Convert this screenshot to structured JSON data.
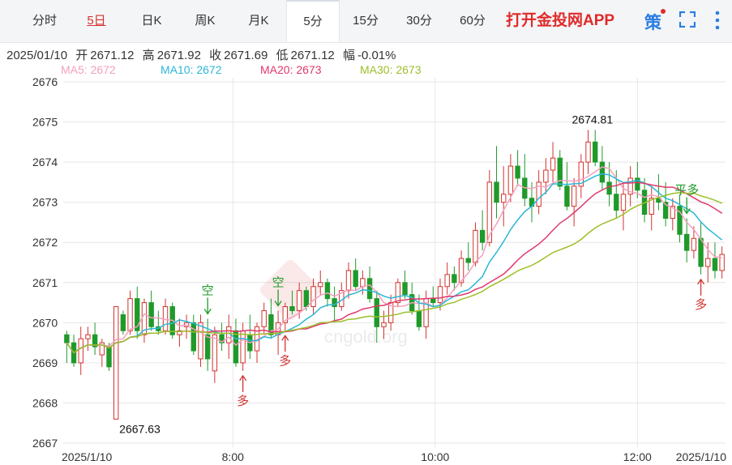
{
  "tabs": [
    "分时",
    "5日",
    "日K",
    "周K",
    "月K",
    "5分",
    "15分",
    "30分",
    "60分"
  ],
  "app_link": "打开金投网APP",
  "ce_label": "策",
  "info": {
    "date": "2025/01/10",
    "open_label": "开",
    "open": "2671.12",
    "high_label": "高",
    "high": "2671.92",
    "close_label": "收",
    "close": "2671.69",
    "low_label": "低",
    "low": "2671.12",
    "change_label": "幅",
    "change": "-0.01%"
  },
  "ma": [
    {
      "label": "MA5: 2672",
      "color": "#f4a0c0"
    },
    {
      "label": "MA10: 2672",
      "color": "#2bb7d6"
    },
    {
      "label": "MA20: 2673",
      "color": "#e0386b"
    },
    {
      "label": "MA30: 2673",
      "color": "#9cbf2a"
    }
  ],
  "annotations": {
    "high_label": "2674.81",
    "low_label": "2667.63",
    "marks": [
      {
        "text": "空",
        "arrow": "down",
        "x": 43
      },
      {
        "text": "空",
        "arrow": "down",
        "x": 64
      },
      {
        "text": "多",
        "arrow": "up",
        "x": 54
      },
      {
        "text": "多",
        "arrow": "up",
        "x": 67
      },
      {
        "text": "平多",
        "arrow": "down",
        "x": 191
      },
      {
        "text": "多",
        "arrow": "up",
        "x": 195
      }
    ]
  },
  "colors": {
    "up": "#d2332e",
    "down": "#1f9a2a",
    "grid": "#e6e6e6"
  },
  "chart_data": {
    "type": "candlestick",
    "interval": "5分",
    "x_ticks": [
      {
        "label": "2025/1/10",
        "index": 0
      },
      {
        "label": "8:00",
        "index": 52
      },
      {
        "label": "10:00",
        "index": 114
      },
      {
        "label": "12:00",
        "index": 176
      },
      {
        "label": "2025/1/10",
        "index": 202
      }
    ],
    "y_ticks": [
      2667,
      2668,
      2669,
      2670,
      2671,
      2672,
      2673,
      2674,
      2675,
      2676
    ],
    "ylim": [
      2666.9,
      2676.1
    ],
    "candles": [
      [
        2669.7,
        2669.8,
        2669.0,
        2669.5
      ],
      [
        2669.5,
        2669.7,
        2668.9,
        2669.0
      ],
      [
        2669.0,
        2669.9,
        2668.7,
        2669.6
      ],
      [
        2669.6,
        2669.9,
        2669.3,
        2669.7
      ],
      [
        2669.7,
        2670.0,
        2669.2,
        2669.4
      ],
      [
        2669.2,
        2669.6,
        2668.9,
        2669.5
      ],
      [
        2669.4,
        2669.5,
        2668.8,
        2668.9
      ],
      [
        2667.6,
        2670.4,
        2667.6,
        2670.4
      ],
      [
        2670.2,
        2670.3,
        2669.7,
        2669.8
      ],
      [
        2669.8,
        2670.8,
        2669.7,
        2670.6
      ],
      [
        2670.6,
        2670.9,
        2669.6,
        2669.8
      ],
      [
        2669.7,
        2670.6,
        2669.5,
        2670.5
      ],
      [
        2670.5,
        2670.8,
        2669.8,
        2669.9
      ],
      [
        2669.9,
        2670.3,
        2669.7,
        2669.8
      ],
      [
        2669.8,
        2670.6,
        2669.7,
        2670.4
      ],
      [
        2670.4,
        2670.5,
        2669.6,
        2669.7
      ],
      [
        2669.7,
        2670.1,
        2669.4,
        2669.8
      ],
      [
        2669.9,
        2670.2,
        2669.6,
        2670.0
      ],
      [
        2670.0,
        2670.2,
        2669.2,
        2669.3
      ],
      [
        2669.1,
        2670.2,
        2668.9,
        2670.0
      ],
      [
        2669.7,
        2670.1,
        2668.8,
        2669.1
      ],
      [
        2668.8,
        2669.9,
        2668.5,
        2669.7
      ],
      [
        2669.7,
        2670.0,
        2669.3,
        2669.5
      ],
      [
        2669.5,
        2670.2,
        2669.1,
        2669.9
      ],
      [
        2669.8,
        2670.1,
        2668.9,
        2669.0
      ],
      [
        2669.0,
        2670.0,
        2668.8,
        2669.8
      ],
      [
        2669.7,
        2670.2,
        2669.1,
        2669.3
      ],
      [
        2669.3,
        2670.0,
        2669.0,
        2669.9
      ],
      [
        2669.9,
        2670.5,
        2669.7,
        2670.3
      ],
      [
        2670.2,
        2670.6,
        2669.6,
        2669.7
      ],
      [
        2669.7,
        2670.3,
        2669.2,
        2670.0
      ],
      [
        2670.0,
        2670.5,
        2669.8,
        2670.4
      ],
      [
        2670.4,
        2670.8,
        2670.2,
        2670.3
      ],
      [
        2670.3,
        2671.0,
        2670.1,
        2670.8
      ],
      [
        2670.8,
        2670.9,
        2670.3,
        2670.4
      ],
      [
        2670.4,
        2671.1,
        2670.2,
        2670.9
      ],
      [
        2670.9,
        2671.3,
        2670.7,
        2671.0
      ],
      [
        2671.0,
        2671.1,
        2670.4,
        2670.6
      ],
      [
        2670.6,
        2670.9,
        2670.0,
        2670.4
      ],
      [
        2670.4,
        2671.0,
        2670.3,
        2670.8
      ],
      [
        2670.8,
        2671.5,
        2670.6,
        2671.3
      ],
      [
        2671.3,
        2671.6,
        2670.8,
        2670.9
      ],
      [
        2670.9,
        2671.3,
        2670.7,
        2671.1
      ],
      [
        2671.1,
        2671.4,
        2670.5,
        2670.6
      ],
      [
        2670.6,
        2670.8,
        2669.5,
        2669.9
      ],
      [
        2669.9,
        2670.3,
        2669.6,
        2670.0
      ],
      [
        2670.0,
        2670.7,
        2669.8,
        2670.5
      ],
      [
        2670.5,
        2671.1,
        2670.4,
        2671.0
      ],
      [
        2671.0,
        2671.3,
        2670.6,
        2670.7
      ],
      [
        2670.7,
        2671.0,
        2670.2,
        2670.3
      ],
      [
        2670.3,
        2670.7,
        2669.8,
        2669.9
      ],
      [
        2669.9,
        2670.8,
        2669.6,
        2670.6
      ],
      [
        2670.6,
        2670.9,
        2670.4,
        2670.5
      ],
      [
        2670.5,
        2671.1,
        2670.3,
        2670.9
      ],
      [
        2670.9,
        2671.5,
        2670.7,
        2671.2
      ],
      [
        2671.2,
        2671.4,
        2670.8,
        2671.0
      ],
      [
        2671.0,
        2671.8,
        2670.9,
        2671.6
      ],
      [
        2671.6,
        2672.0,
        2671.3,
        2671.5
      ],
      [
        2671.5,
        2672.5,
        2671.4,
        2672.3
      ],
      [
        2672.3,
        2672.8,
        2671.8,
        2672.0
      ],
      [
        2672.0,
        2673.8,
        2671.9,
        2673.5
      ],
      [
        2673.5,
        2674.4,
        2672.6,
        2673.0
      ],
      [
        2673.0,
        2673.9,
        2672.4,
        2673.2
      ],
      [
        2673.2,
        2674.2,
        2673.0,
        2673.9
      ],
      [
        2673.9,
        2674.3,
        2673.4,
        2673.6
      ],
      [
        2673.6,
        2674.2,
        2672.9,
        2673.1
      ],
      [
        2673.1,
        2673.5,
        2672.5,
        2672.9
      ],
      [
        2672.9,
        2673.8,
        2672.7,
        2673.5
      ],
      [
        2673.5,
        2674.1,
        2673.2,
        2673.8
      ],
      [
        2673.8,
        2674.5,
        2673.5,
        2674.1
      ],
      [
        2674.1,
        2674.3,
        2673.3,
        2673.4
      ],
      [
        2673.4,
        2674.0,
        2672.8,
        2672.9
      ],
      [
        2672.9,
        2673.6,
        2672.4,
        2673.4
      ],
      [
        2673.4,
        2674.2,
        2673.1,
        2674.0
      ],
      [
        2674.0,
        2674.8,
        2673.7,
        2674.5
      ],
      [
        2674.5,
        2674.8,
        2673.9,
        2674.0
      ],
      [
        2674.0,
        2674.4,
        2673.3,
        2673.5
      ],
      [
        2673.5,
        2674.0,
        2672.9,
        2673.2
      ],
      [
        2673.2,
        2673.8,
        2672.6,
        2672.8
      ],
      [
        2672.8,
        2673.5,
        2672.3,
        2673.2
      ],
      [
        2673.2,
        2673.9,
        2672.9,
        2673.6
      ],
      [
        2673.6,
        2674.0,
        2673.1,
        2673.3
      ],
      [
        2673.3,
        2673.6,
        2672.5,
        2672.7
      ],
      [
        2672.7,
        2673.4,
        2672.3,
        2673.1
      ],
      [
        2673.1,
        2673.7,
        2672.8,
        2673.0
      ],
      [
        2673.0,
        2673.5,
        2672.4,
        2672.6
      ],
      [
        2672.6,
        2673.1,
        2672.3,
        2672.9
      ],
      [
        2672.9,
        2673.2,
        2672.0,
        2672.2
      ],
      [
        2672.2,
        2672.6,
        2671.5,
        2671.8
      ],
      [
        2671.8,
        2672.4,
        2671.6,
        2672.1
      ],
      [
        2672.1,
        2672.5,
        2671.2,
        2671.4
      ],
      [
        2671.4,
        2672.0,
        2671.0,
        2671.6
      ],
      [
        2671.6,
        2672.0,
        2671.1,
        2671.3
      ],
      [
        2671.3,
        2671.9,
        2671.1,
        2671.7
      ]
    ],
    "ma5": [
      2669.6,
      2669.5,
      2669.4,
      2669.5,
      2669.4,
      2669.3,
      2669.4,
      2669.6,
      2669.8,
      2670.1,
      2670.2,
      2670.3,
      2670.2,
      2670.1,
      2670.0,
      2669.9,
      2669.9,
      2669.8,
      2669.6,
      2669.6,
      2669.5,
      2669.6,
      2669.5,
      2669.5,
      2669.6,
      2669.6,
      2669.7,
      2669.9,
      2670.1,
      2670.4,
      2670.6,
      2670.7,
      2670.7,
      2670.6,
      2670.3,
      2670.2,
      2670.3,
      2670.4,
      2670.4,
      2670.3,
      2670.5,
      2670.9,
      2671.4,
      2671.9,
      2672.6,
      2673.0,
      2673.3,
      2673.5,
      2673.4,
      2673.3,
      2673.3,
      2673.5,
      2673.7,
      2673.8,
      2673.8,
      2673.6,
      2673.4,
      2673.2,
      2673.1,
      2673.0,
      2672.9,
      2672.8,
      2672.6,
      2672.3,
      2672.0,
      2671.8
    ]
  }
}
